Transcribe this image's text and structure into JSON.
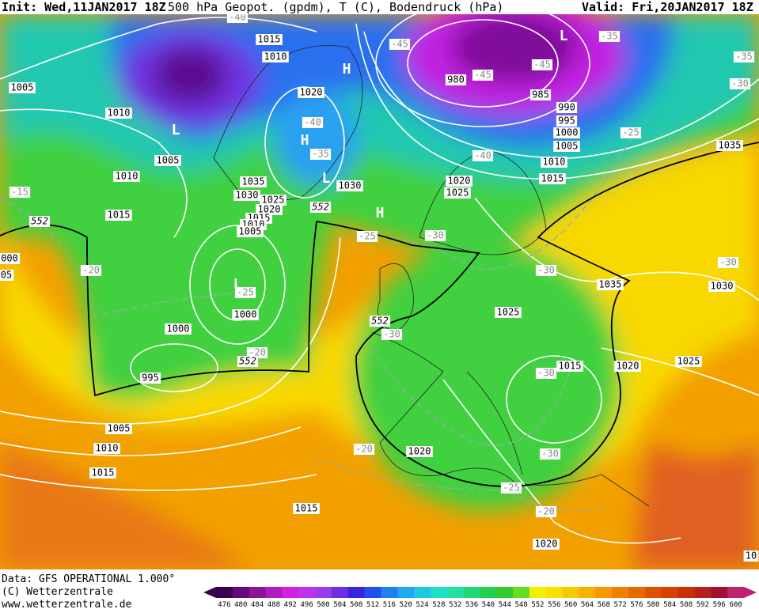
{
  "header": {
    "init": "Init: Wed,11JAN2017 18Z",
    "title": "500 hPa Geopot. (gpdm), T (C), Bodendruck (hPa)",
    "valid": "Valid: Fri,20JAN2017 18Z"
  },
  "footer": {
    "data": "Data: GFS OPERATIONAL 1.000°",
    "copyright": "(C) Wetterzentrale",
    "url": "www.wetterzentrale.de"
  },
  "colorbar": {
    "levels": [
      476,
      480,
      484,
      488,
      492,
      496,
      500,
      504,
      508,
      512,
      516,
      520,
      524,
      528,
      532,
      536,
      540,
      544,
      548,
      552,
      556,
      560,
      564,
      568,
      572,
      576,
      580,
      584,
      588,
      592,
      596,
      600
    ],
    "colors": [
      "#3a0050",
      "#650a78",
      "#8a1598",
      "#b01cc0",
      "#d020e0",
      "#c030f0",
      "#9a3ce8",
      "#6c30e0",
      "#3a24e0",
      "#2050f0",
      "#2080f0",
      "#20a8f0",
      "#20c8e4",
      "#20e0c8",
      "#20e0a2",
      "#20d878",
      "#22d050",
      "#34cc30",
      "#66de20",
      "#f0f000",
      "#f8e000",
      "#f8c800",
      "#f8b000",
      "#f89800",
      "#f08000",
      "#e86800",
      "#e05000",
      "#d84000",
      "#c83000",
      "#b82020",
      "#a01030",
      "#c02070"
    ]
  },
  "map": {
    "isobars": [
      "1015",
      "1010",
      "1005",
      "1010",
      "1020",
      "1005",
      "1010",
      "1015",
      "1035",
      "1030",
      "1025",
      "1020",
      "1015",
      "1010",
      "1005",
      "1030",
      "980",
      "985",
      "990",
      "995",
      "1000",
      "1005",
      "1010",
      "1015",
      "1020",
      "1025",
      "1035",
      "1035",
      "1030",
      "1025",
      "1000",
      "1000",
      "995",
      "1015",
      "1020",
      "1025",
      "1020",
      "1005",
      "1010",
      "1015",
      "1015",
      "1020",
      "000",
      "05",
      "10"
    ],
    "temperatures": [
      "-40",
      "-45",
      "-35",
      "-35",
      "-30",
      "-45",
      "-45",
      "-40",
      "-35",
      "-40",
      "-25",
      "-15",
      "-25",
      "-30",
      "-30",
      "-30",
      "-20",
      "-25",
      "-30",
      "-20",
      "-30",
      "-20",
      "-30",
      "-25",
      "-20"
    ],
    "pressure_centers": [
      "L",
      "H",
      "L",
      "H",
      "L",
      "H",
      "L"
    ],
    "geopotential_labels": [
      "552",
      "552",
      "552",
      "552"
    ]
  }
}
